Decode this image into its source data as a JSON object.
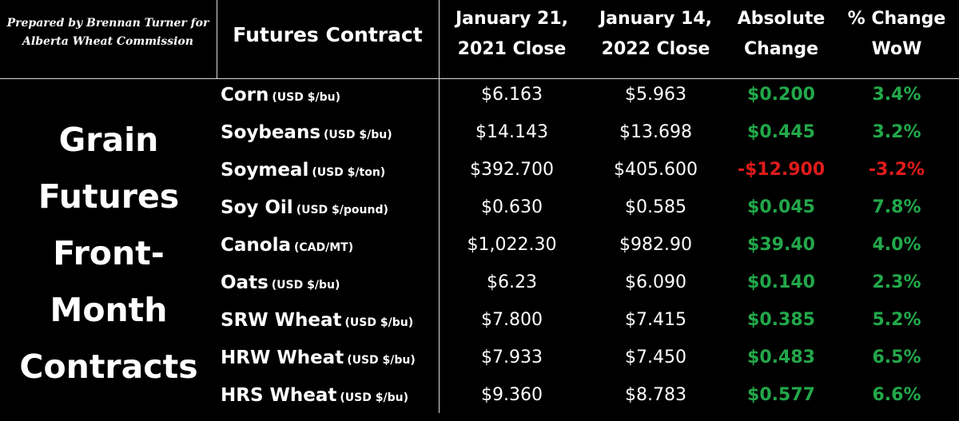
{
  "credit": {
    "line1": "Prepared by Brennan Turner for",
    "line2": "Alberta Wheat Commission"
  },
  "headers": {
    "contract": "Futures Contract",
    "close1_line1": "January 21,",
    "close1_line2": "2021 Close",
    "close2_line1": "January 14,",
    "close2_line2": "2022 Close",
    "abs_line1": "Absolute",
    "abs_line2": "Change",
    "pct_line1": "% Change",
    "pct_line2": "WoW"
  },
  "side_title": [
    "Grain",
    "Futures",
    "Front-",
    "Month",
    "Contracts"
  ],
  "colors": {
    "positive": "#22a84a",
    "negative": "#e01b1b",
    "background": "#000000",
    "text": "#ffffff"
  },
  "rows": [
    {
      "name": "Corn",
      "unit": "(USD $/bu)",
      "close1": "$6.163",
      "close2": "$5.963",
      "abs": "$0.200",
      "pct": "3.4%",
      "sign": "pos"
    },
    {
      "name": "Soybeans",
      "unit": "(USD $/bu)",
      "close1": "$14.143",
      "close2": "$13.698",
      "abs": "$0.445",
      "pct": "3.2%",
      "sign": "pos"
    },
    {
      "name": "Soymeal",
      "unit": "(USD $/ton)",
      "close1": "$392.700",
      "close2": "$405.600",
      "abs": "-$12.900",
      "pct": "-3.2%",
      "sign": "neg"
    },
    {
      "name": "Soy Oil",
      "unit": "(USD $/pound)",
      "close1": "$0.630",
      "close2": "$0.585",
      "abs": "$0.045",
      "pct": "7.8%",
      "sign": "pos"
    },
    {
      "name": "Canola",
      "unit": "(CAD/MT)",
      "close1": "$1,022.30",
      "close2": "$982.90",
      "abs": "$39.40",
      "pct": "4.0%",
      "sign": "pos"
    },
    {
      "name": "Oats",
      "unit": "(USD $/bu)",
      "close1": "$6.23",
      "close2": "$6.090",
      "abs": "$0.140",
      "pct": "2.3%",
      "sign": "pos"
    },
    {
      "name": "SRW Wheat",
      "unit": "(USD $/bu)",
      "close1": "$7.800",
      "close2": "$7.415",
      "abs": "$0.385",
      "pct": "5.2%",
      "sign": "pos"
    },
    {
      "name": "HRW Wheat",
      "unit": "(USD $/bu)",
      "close1": "$7.933",
      "close2": "$7.450",
      "abs": "$0.483",
      "pct": "6.5%",
      "sign": "pos"
    },
    {
      "name": "HRS Wheat",
      "unit": "(USD $/bu)",
      "close1": "$9.360",
      "close2": "$8.783",
      "abs": "$0.577",
      "pct": "6.6%",
      "sign": "pos"
    }
  ]
}
